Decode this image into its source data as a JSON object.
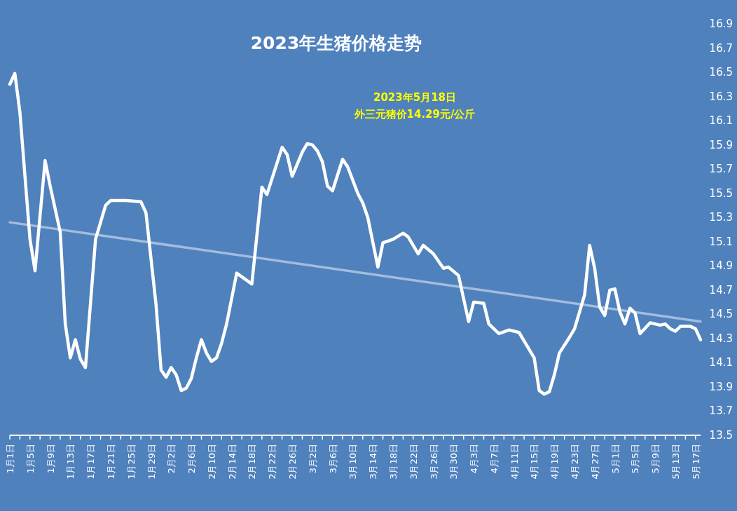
{
  "chart_data": {
    "type": "line",
    "title": "2023年生猪价格走势",
    "annotations": [
      "2023年5月18日",
      "外三元猪价14.29元/公斤"
    ],
    "series": [
      {
        "color": "#ffffff",
        "x": [
          "2023-01-01",
          "2023-01-02",
          "2023-01-03",
          "2023-01-05",
          "2023-01-06",
          "2023-01-08",
          "2023-01-09",
          "2023-01-11",
          "2023-01-12",
          "2023-01-13",
          "2023-01-14",
          "2023-01-15",
          "2023-01-16",
          "2023-01-18",
          "2023-01-20",
          "2023-01-21",
          "2023-01-24",
          "2023-01-27",
          "2023-01-28",
          "2023-01-30",
          "2023-01-31",
          "2023-02-01",
          "2023-02-02",
          "2023-02-03",
          "2023-02-04",
          "2023-02-05",
          "2023-02-06",
          "2023-02-07",
          "2023-02-08",
          "2023-02-09",
          "2023-02-10",
          "2023-02-11",
          "2023-02-12",
          "2023-02-13",
          "2023-02-15",
          "2023-02-18",
          "2023-02-20",
          "2023-02-21",
          "2023-02-24",
          "2023-02-25",
          "2023-02-26",
          "2023-02-28",
          "2023-03-01",
          "2023-03-02",
          "2023-03-03",
          "2023-03-04",
          "2023-03-05",
          "2023-03-06",
          "2023-03-08",
          "2023-03-09",
          "2023-03-11",
          "2023-03-12",
          "2023-03-13",
          "2023-03-15",
          "2023-03-16",
          "2023-03-18",
          "2023-03-20",
          "2023-03-21",
          "2023-03-23",
          "2023-03-24",
          "2023-03-26",
          "2023-03-28",
          "2023-03-29",
          "2023-03-31",
          "2023-04-02",
          "2023-04-03",
          "2023-04-05",
          "2023-04-06",
          "2023-04-08",
          "2023-04-10",
          "2023-04-12",
          "2023-04-13",
          "2023-04-15",
          "2023-04-16",
          "2023-04-17",
          "2023-04-18",
          "2023-04-19",
          "2023-04-20",
          "2023-04-22",
          "2023-04-23",
          "2023-04-24",
          "2023-04-25",
          "2023-04-26",
          "2023-04-27",
          "2023-04-28",
          "2023-04-29",
          "2023-04-30",
          "2023-05-01",
          "2023-05-02",
          "2023-05-03",
          "2023-05-04",
          "2023-05-05",
          "2023-05-06",
          "2023-05-08",
          "2023-05-10",
          "2023-05-11",
          "2023-05-12",
          "2023-05-13",
          "2023-05-14",
          "2023-05-16",
          "2023-05-17",
          "2023-05-18"
        ],
        "values": [
          16.4,
          16.49,
          16.17,
          15.12,
          14.86,
          15.77,
          15.56,
          15.18,
          14.42,
          14.14,
          14.29,
          14.13,
          14.06,
          15.12,
          15.4,
          15.44,
          15.44,
          15.43,
          15.34,
          14.58,
          14.04,
          13.98,
          14.06,
          14.0,
          13.87,
          13.89,
          13.97,
          14.14,
          14.29,
          14.18,
          14.11,
          14.14,
          14.26,
          14.42,
          14.84,
          14.75,
          15.55,
          15.49,
          15.88,
          15.82,
          15.64,
          15.84,
          15.91,
          15.9,
          15.85,
          15.76,
          15.56,
          15.52,
          15.78,
          15.72,
          15.5,
          15.42,
          15.3,
          14.89,
          15.09,
          15.12,
          15.17,
          15.14,
          15.0,
          15.07,
          15.0,
          14.88,
          14.89,
          14.82,
          14.44,
          14.6,
          14.59,
          14.42,
          14.34,
          14.37,
          14.35,
          14.28,
          14.14,
          13.87,
          13.84,
          13.86,
          14.0,
          14.18,
          14.31,
          14.38,
          14.52,
          14.66,
          15.07,
          14.88,
          14.56,
          14.49,
          14.7,
          14.71,
          14.52,
          14.42,
          14.55,
          14.51,
          14.34,
          14.43,
          14.41,
          14.42,
          14.38,
          14.36,
          14.4,
          14.4,
          14.38,
          14.29
        ]
      },
      {
        "type": "line",
        "color": "#b8cae4",
        "x": [
          "2023-01-01",
          "2023-05-18"
        ],
        "values": [
          15.26,
          14.44
        ]
      }
    ],
    "xlim": [
      "2023-01-01",
      "2023-05-18"
    ],
    "xticks": [
      {
        "value": "2023-01-01",
        "label": "1月1日"
      },
      {
        "value": "2023-01-03",
        "label": null
      },
      {
        "value": "2023-01-05",
        "label": "1月5日"
      },
      {
        "value": "2023-01-07",
        "label": null
      },
      {
        "value": "2023-01-09",
        "label": "1月9日"
      },
      {
        "value": "2023-01-11",
        "label": null
      },
      {
        "value": "2023-01-13",
        "label": "1月13日"
      },
      {
        "value": "2023-01-15",
        "label": null
      },
      {
        "value": "2023-01-17",
        "label": "1月17日"
      },
      {
        "value": "2023-01-19",
        "label": null
      },
      {
        "value": "2023-01-21",
        "label": "1月21日"
      },
      {
        "value": "2023-01-23",
        "label": null
      },
      {
        "value": "2023-01-25",
        "label": "1月25日"
      },
      {
        "value": "2023-01-27",
        "label": null
      },
      {
        "value": "2023-01-29",
        "label": "1月29日"
      },
      {
        "value": "2023-01-31",
        "label": null
      },
      {
        "value": "2023-02-02",
        "label": "2月2日"
      },
      {
        "value": "2023-02-04",
        "label": null
      },
      {
        "value": "2023-02-06",
        "label": "2月6日"
      },
      {
        "value": "2023-02-08",
        "label": null
      },
      {
        "value": "2023-02-10",
        "label": "2月10日"
      },
      {
        "value": "2023-02-12",
        "label": null
      },
      {
        "value": "2023-02-14",
        "label": "2月14日"
      },
      {
        "value": "2023-02-16",
        "label": null
      },
      {
        "value": "2023-02-18",
        "label": "2月18日"
      },
      {
        "value": "2023-02-20",
        "label": null
      },
      {
        "value": "2023-02-22",
        "label": "2月22日"
      },
      {
        "value": "2023-02-24",
        "label": null
      },
      {
        "value": "2023-02-26",
        "label": "2月26日"
      },
      {
        "value": "2023-02-28",
        "label": null
      },
      {
        "value": "2023-03-02",
        "label": "3月2日"
      },
      {
        "value": "2023-03-04",
        "label": null
      },
      {
        "value": "2023-03-06",
        "label": "3月6日"
      },
      {
        "value": "2023-03-08",
        "label": null
      },
      {
        "value": "2023-03-10",
        "label": "3月10日"
      },
      {
        "value": "2023-03-12",
        "label": null
      },
      {
        "value": "2023-03-14",
        "label": "3月14日"
      },
      {
        "value": "2023-03-16",
        "label": null
      },
      {
        "value": "2023-03-18",
        "label": "3月18日"
      },
      {
        "value": "2023-03-20",
        "label": null
      },
      {
        "value": "2023-03-22",
        "label": "3月22日"
      },
      {
        "value": "2023-03-24",
        "label": null
      },
      {
        "value": "2023-03-26",
        "label": "3月26日"
      },
      {
        "value": "2023-03-28",
        "label": null
      },
      {
        "value": "2023-03-30",
        "label": "3月30日"
      },
      {
        "value": "2023-04-01",
        "label": null
      },
      {
        "value": "2023-04-03",
        "label": "4月3日"
      },
      {
        "value": "2023-04-05",
        "label": null
      },
      {
        "value": "2023-04-07",
        "label": "4月7日"
      },
      {
        "value": "2023-04-09",
        "label": null
      },
      {
        "value": "2023-04-11",
        "label": "4月11日"
      },
      {
        "value": "2023-04-13",
        "label": null
      },
      {
        "value": "2023-04-15",
        "label": "4月15日"
      },
      {
        "value": "2023-04-17",
        "label": null
      },
      {
        "value": "2023-04-19",
        "label": "4月19日"
      },
      {
        "value": "2023-04-21",
        "label": null
      },
      {
        "value": "2023-04-23",
        "label": "4月23日"
      },
      {
        "value": "2023-04-25",
        "label": null
      },
      {
        "value": "2023-04-27",
        "label": "4月27日"
      },
      {
        "value": "2023-04-29",
        "label": null
      },
      {
        "value": "2023-05-01",
        "label": "5月1日"
      },
      {
        "value": "2023-05-03",
        "label": null
      },
      {
        "value": "2023-05-05",
        "label": "5月5日"
      },
      {
        "value": "2023-05-07",
        "label": null
      },
      {
        "value": "2023-05-09",
        "label": "5月9日"
      },
      {
        "value": "2023-05-11",
        "label": null
      },
      {
        "value": "2023-05-13",
        "label": "5月13日"
      },
      {
        "value": "2023-05-15",
        "label": null
      },
      {
        "value": "2023-05-17",
        "label": "5月17日"
      }
    ],
    "ylim": [
      13.5,
      16.9
    ],
    "yticks": [
      13.5,
      13.7,
      13.9,
      14.1,
      14.3,
      14.5,
      14.7,
      14.9,
      15.1,
      15.3,
      15.5,
      15.7,
      15.9,
      16.1,
      16.3,
      16.5,
      16.7,
      16.9
    ],
    "grid": false,
    "marker": "none"
  }
}
